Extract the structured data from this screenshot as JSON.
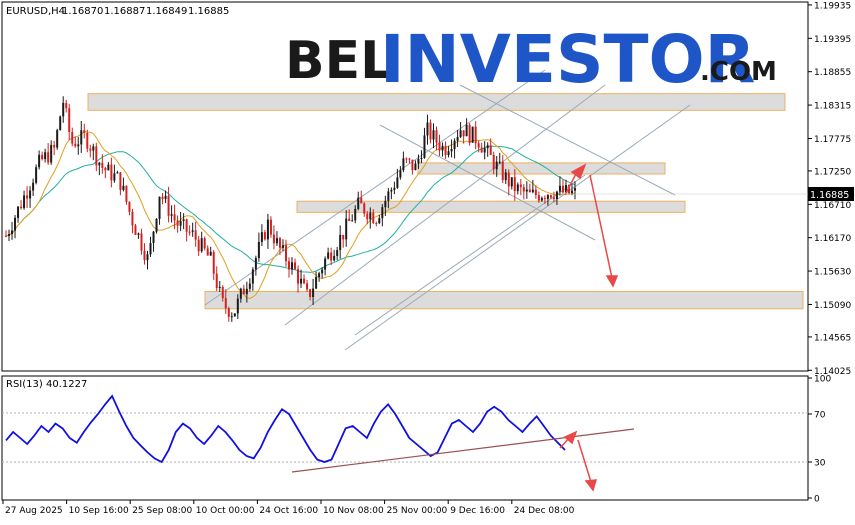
{
  "logo": {
    "part1": "BEL",
    "part2": "INVESTOR",
    "part3": ".COM"
  },
  "colors": {
    "bull": "#1a1a1a",
    "bear": "#d42020",
    "ma_fast": "#e0a020",
    "ma_slow": "#20b0a0",
    "zone_fill": "#dcdcdc",
    "zone_border": "#f0b060",
    "rsi": "#1010e0",
    "arrow": "#e84848",
    "channel": "#9aaab8",
    "rsi_trend": "#9a5050",
    "logo_dark": "#1a1a1a",
    "logo_blue": "#1e56c8"
  },
  "chart_data": [
    {
      "type": "candlestick",
      "title": "EURUSD,H4",
      "ohlc_header": [
        "1.16870",
        "1.16887",
        "1.16849",
        "1.16885"
      ],
      "current_price": "1.16885",
      "ylim": [
        1.1403,
        1.1995
      ],
      "y_tick_labels": [
        "1.19935",
        "1.19395",
        "1.18855",
        "1.18315",
        "1.17775",
        "1.17250",
        "1.16710",
        "1.16170",
        "1.15630",
        "1.15090",
        "1.14565",
        "1.14025"
      ],
      "x_tick_labels": [
        "27 Aug 2025",
        "10 Sep 16:00",
        "25 Sep 08:00",
        "10 Oct 00:00",
        "24 Oct 16:00",
        "10 Nov 08:00",
        "25 Nov 00:00",
        "9 Dec 16:00",
        "24 Dec 08:00"
      ],
      "price_path": [
        [
          0,
          1.162
        ],
        [
          0.03,
          1.168
        ],
        [
          0.06,
          1.174
        ],
        [
          0.085,
          1.176
        ],
        [
          0.1,
          1.184
        ],
        [
          0.115,
          1.177
        ],
        [
          0.14,
          1.178
        ],
        [
          0.17,
          1.173
        ],
        [
          0.2,
          1.171
        ],
        [
          0.22,
          1.165
        ],
        [
          0.25,
          1.158
        ],
        [
          0.27,
          1.169
        ],
        [
          0.3,
          1.164
        ],
        [
          0.33,
          1.162
        ],
        [
          0.36,
          1.158
        ],
        [
          0.38,
          1.151
        ],
        [
          0.4,
          1.1495
        ],
        [
          0.43,
          1.156
        ],
        [
          0.46,
          1.164
        ],
        [
          0.48,
          1.16
        ],
        [
          0.51,
          1.156
        ],
        [
          0.53,
          1.152
        ],
        [
          0.56,
          1.158
        ],
        [
          0.59,
          1.162
        ],
        [
          0.62,
          1.167
        ],
        [
          0.65,
          1.165
        ],
        [
          0.68,
          1.17
        ],
        [
          0.7,
          1.174
        ],
        [
          0.72,
          1.173
        ],
        [
          0.74,
          1.179
        ],
        [
          0.77,
          1.176
        ],
        [
          0.8,
          1.1795
        ],
        [
          0.83,
          1.1775
        ],
        [
          0.86,
          1.1735
        ],
        [
          0.89,
          1.17
        ],
        [
          0.92,
          1.1685
        ],
        [
          0.96,
          1.1692
        ],
        [
          1.0,
          1.16885
        ]
      ],
      "support_resistance_zones": [
        {
          "from": 1.1823,
          "to": 1.185
        },
        {
          "from": 1.172,
          "to": 1.1738
        },
        {
          "from": 1.1658,
          "to": 1.1676
        },
        {
          "from": 1.1502,
          "to": 1.153
        }
      ]
    },
    {
      "type": "line",
      "title": "RSI(13) 40.1227",
      "ylim": [
        0,
        100
      ],
      "y_tick_labels": [
        "100",
        "70",
        "30",
        "0"
      ],
      "levels": [
        70,
        30
      ],
      "values": [
        48,
        55,
        50,
        45,
        52,
        60,
        55,
        62,
        58,
        50,
        46,
        55,
        63,
        70,
        78,
        85,
        72,
        60,
        50,
        44,
        38,
        33,
        30,
        40,
        55,
        62,
        58,
        50,
        45,
        52,
        60,
        55,
        48,
        40,
        35,
        33,
        42,
        55,
        65,
        74,
        70,
        60,
        50,
        40,
        32,
        30,
        32,
        45,
        58,
        60,
        55,
        50,
        62,
        72,
        78,
        70,
        60,
        50,
        45,
        40,
        35,
        38,
        50,
        62,
        65,
        60,
        55,
        62,
        72,
        76,
        72,
        65,
        60,
        55,
        62,
        68,
        60,
        52,
        46,
        40
      ]
    }
  ]
}
